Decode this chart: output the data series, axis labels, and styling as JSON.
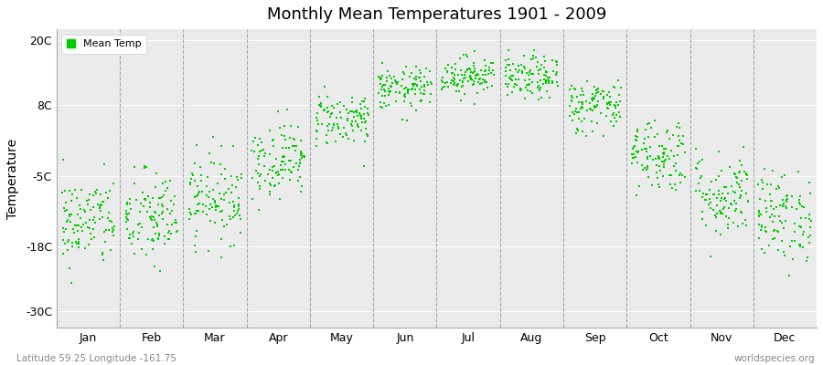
{
  "title": "Monthly Mean Temperatures 1901 - 2009",
  "ylabel": "Temperature",
  "yticks": [
    -30,
    -18,
    -5,
    8,
    20
  ],
  "ytick_labels": [
    "-30C",
    "-18C",
    "-5C",
    "8C",
    "20C"
  ],
  "ylim": [
    -33,
    22
  ],
  "xlim": [
    0,
    12
  ],
  "months": [
    "Jan",
    "Feb",
    "Mar",
    "Apr",
    "May",
    "Jun",
    "Jul",
    "Aug",
    "Sep",
    "Oct",
    "Nov",
    "Dec"
  ],
  "dot_color": "#00cc00",
  "dot_size": 3,
  "background_color": "#ebebeb",
  "figure_bg": "#ffffff",
  "grid_color": "#777777",
  "legend_label": "Mean Temp",
  "subtitle_left": "Latitude 59.25 Longitude -161.75",
  "subtitle_right": "worldspecies.org",
  "years": 109,
  "monthly_means": [
    -13.5,
    -13.0,
    -9.0,
    -2.0,
    5.5,
    11.0,
    13.5,
    13.0,
    8.0,
    -1.0,
    -8.5,
    -12.5
  ],
  "monthly_stds": [
    4.2,
    4.5,
    4.0,
    3.5,
    2.5,
    2.0,
    1.8,
    2.0,
    2.5,
    3.5,
    4.0,
    4.2
  ],
  "subtitle_fontsize": 7.5,
  "tick_fontsize": 9,
  "title_fontsize": 13
}
